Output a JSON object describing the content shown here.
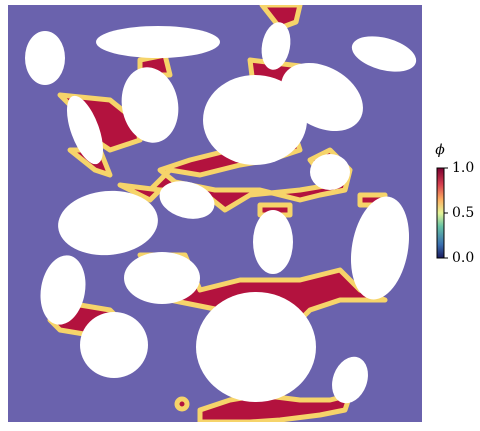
{
  "colorbar": {
    "label": "ϕ",
    "lim": [
      0,
      1
    ],
    "ticks": [
      {
        "value": 1,
        "label": "1.0"
      },
      {
        "value": 0.5,
        "label": "0.5"
      },
      {
        "value": 0,
        "label": "0.0"
      }
    ]
  }
}
